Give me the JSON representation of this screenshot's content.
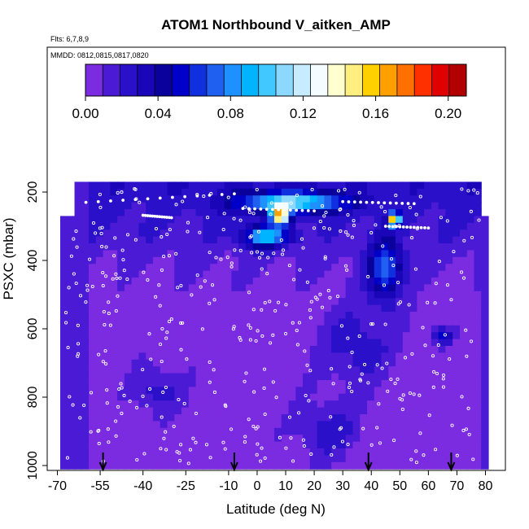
{
  "chart_data": {
    "type": "heatmap",
    "title": "ATOM1 Northbound V_aitken_AMP",
    "subtitle_flights": "Flts: 6,7,8,9",
    "subtitle_dates": "MMDD: 0812,0815,0817,0820",
    "xlabel": "Latitude (deg N)",
    "ylabel": "PSXC (mbar)",
    "x_ticks": [
      "-70",
      "-55",
      "-40",
      "-25",
      "-10",
      "0",
      "10",
      "20",
      "30",
      "40",
      "50",
      "60",
      "70",
      "80"
    ],
    "x_tick_values": [
      -70,
      -55,
      -40,
      -25,
      -10,
      0,
      10,
      20,
      30,
      40,
      50,
      60,
      70,
      80
    ],
    "y_ticks": [
      "200",
      "400",
      "600",
      "800",
      "1000"
    ],
    "y_tick_values": [
      200,
      400,
      600,
      800,
      1000
    ],
    "xlim": [
      -69,
      81
    ],
    "ylim": [
      1000,
      160
    ],
    "colorbar": {
      "ticks": [
        "0.00",
        "0.04",
        "0.08",
        "0.12",
        "0.16",
        "0.20"
      ],
      "tick_values": [
        0.0,
        0.04,
        0.08,
        0.12,
        0.16,
        0.2
      ],
      "range": [
        0.0,
        0.21
      ],
      "colors": [
        "#7b2be0",
        "#4a1ad4",
        "#2a10c8",
        "#1a06b8",
        "#0a009c",
        "#0000c8",
        "#1030e0",
        "#2060f0",
        "#1e90ff",
        "#00b4ff",
        "#40c8ff",
        "#8cd8ff",
        "#c8ecff",
        "#f4fcff",
        "#ffffd0",
        "#ffef80",
        "#ffd000",
        "#ffa000",
        "#ff7000",
        "#ff3000",
        "#e00000",
        "#b00000"
      ]
    },
    "profile_arrows_latitude": [
      -54,
      -8,
      39,
      68
    ],
    "grid": false
  }
}
